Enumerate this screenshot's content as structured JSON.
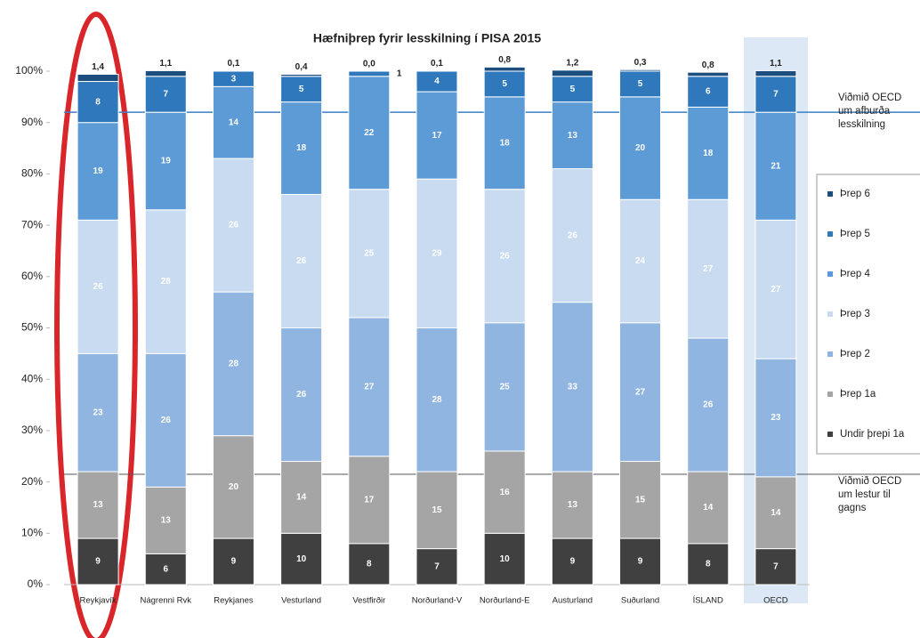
{
  "chart_data": {
    "type": "stacked_bar",
    "title": "Hæfniþrep fyrir lesskilning í PISA 2015",
    "categories": [
      "Reykjavík",
      "Nágrenni Rvk",
      "Reykjanes",
      "Vesturland",
      "Vestfirðir",
      "Norðurland-V",
      "Norðurland-E",
      "Austurland",
      "Suðurland",
      "ÍSLAND",
      "OECD"
    ],
    "series": [
      {
        "name": "Undir þrepi 1a",
        "color": "#404040",
        "values": [
          9,
          6,
          9,
          10,
          8,
          7,
          10,
          9,
          9,
          8,
          7
        ]
      },
      {
        "name": "Þrep 1a",
        "color": "#a5a5a5",
        "values": [
          13,
          13,
          20,
          14,
          17,
          15,
          16,
          13,
          15,
          14,
          14
        ]
      },
      {
        "name": "Þrep 2",
        "color": "#8fb5e0",
        "values": [
          23,
          26,
          28,
          26,
          27,
          28,
          25,
          33,
          27,
          26,
          23
        ]
      },
      {
        "name": "Þrep 3",
        "color": "#c8dbf0",
        "values": [
          26,
          28,
          26,
          26,
          25,
          29,
          26,
          26,
          24,
          27,
          27
        ]
      },
      {
        "name": "Þrep 4",
        "color": "#5d9bd6",
        "values": [
          19,
          19,
          14,
          18,
          22,
          17,
          18,
          13,
          20,
          18,
          21
        ]
      },
      {
        "name": "Þrep 5",
        "color": "#2f78bb",
        "values": [
          8,
          7,
          3,
          5,
          1,
          4,
          5,
          5,
          5,
          6,
          7
        ]
      },
      {
        "name": "Þrep 6",
        "color": "#1c4f80",
        "values": [
          1.4,
          1.1,
          0.1,
          0.4,
          0.0,
          0.1,
          0.8,
          1.2,
          0.3,
          0.8,
          1.1
        ],
        "value_labels": [
          "1,4",
          "1,1",
          "0,1",
          "0,4",
          "0,0",
          "0,1",
          "0,8",
          "1,2",
          "0,3",
          "0,8",
          "1,1"
        ]
      }
    ],
    "ylim": [
      0,
      100
    ],
    "yticks": [
      {
        "value": 0,
        "label": "0%"
      },
      {
        "value": 10,
        "label": "10%"
      },
      {
        "value": 20,
        "label": "20%"
      },
      {
        "value": 30,
        "label": "30%"
      },
      {
        "value": 40,
        "label": "40%"
      },
      {
        "value": 50,
        "label": "50%"
      },
      {
        "value": 60,
        "label": "60%"
      },
      {
        "value": 70,
        "label": "70%"
      },
      {
        "value": 80,
        "label": "80%"
      },
      {
        "value": 90,
        "label": "90%"
      },
      {
        "value": 100,
        "label": "100%"
      }
    ],
    "reference_lines": [
      {
        "value": 92,
        "label": [
          "Viðmið OECD",
          "um afburða",
          "lesskilning"
        ]
      },
      {
        "value": 21.5,
        "label": [
          "Viðmið OECD",
          "um lestur til",
          "gagns"
        ]
      }
    ],
    "legend": "right"
  }
}
